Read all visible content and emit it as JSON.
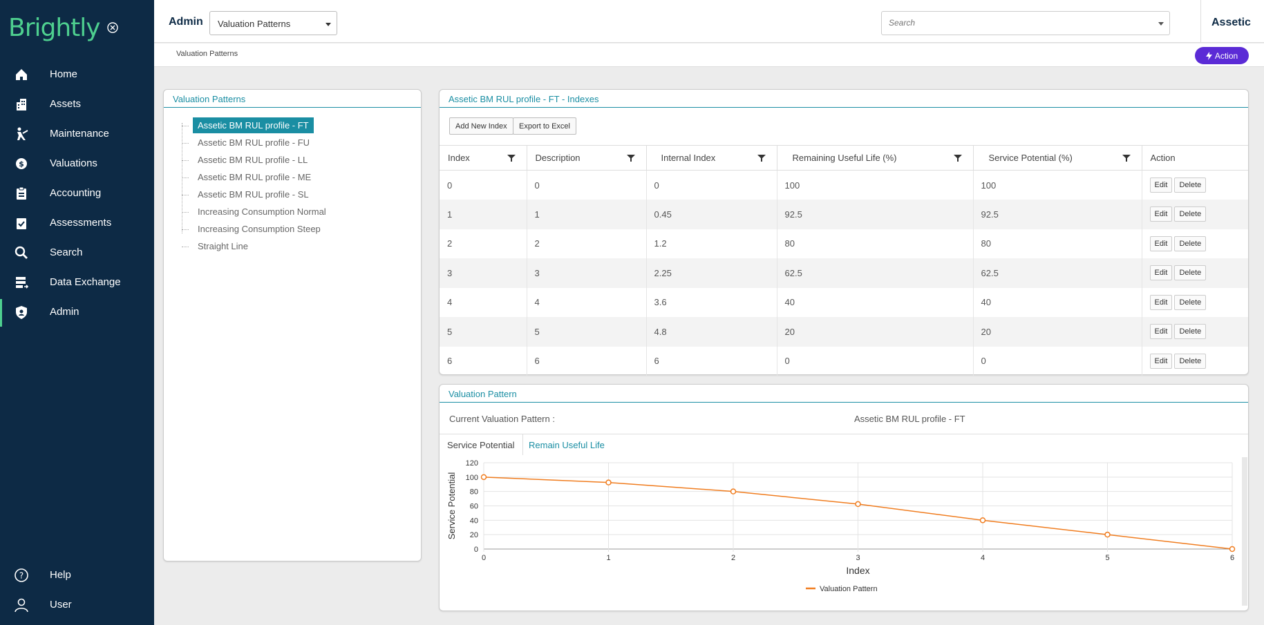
{
  "brand": {
    "logo_text": "Brightly",
    "accent": "#4ecf8f",
    "sidebar_bg": "#0d2a45",
    "teal": "#1a8ea3",
    "action_purple": "#5b2bd6"
  },
  "sidebar": {
    "items": [
      {
        "label": "Home",
        "icon": "home-icon"
      },
      {
        "label": "Assets",
        "icon": "building-icon"
      },
      {
        "label": "Maintenance",
        "icon": "worker-icon"
      },
      {
        "label": "Valuations",
        "icon": "coins-icon"
      },
      {
        "label": "Accounting",
        "icon": "ledger-icon"
      },
      {
        "label": "Assessments",
        "icon": "clipboard-check-icon"
      },
      {
        "label": "Search",
        "icon": "search-icon"
      },
      {
        "label": "Data Exchange",
        "icon": "data-exchange-icon"
      },
      {
        "label": "Admin",
        "icon": "shield-icon",
        "active": true
      }
    ],
    "bottom": [
      {
        "label": "Help",
        "icon": "help-icon"
      },
      {
        "label": "User",
        "icon": "user-icon"
      }
    ]
  },
  "topbar": {
    "section": "Admin",
    "module_select": "Valuation Patterns",
    "search_placeholder": "Search",
    "tenant": "Assetic"
  },
  "breadcrumb": "Valuation Patterns",
  "action_button": "Action",
  "patterns_panel": {
    "title": "Valuation Patterns",
    "items": [
      "Assetic BM RUL profile - FT",
      "Assetic BM RUL profile - FU",
      "Assetic BM RUL profile - LL",
      "Assetic BM RUL profile - ME",
      "Assetic BM RUL profile - SL",
      "Increasing Consumption Normal",
      "Increasing Consumption Steep",
      "Straight Line"
    ],
    "selected_index": 0
  },
  "indexes_panel": {
    "title": "Assetic BM RUL profile - FT - Indexes",
    "add_button": "Add New Index",
    "export_button": "Export to Excel",
    "columns": [
      "Index",
      "Description",
      "Internal Index",
      "Remaining Useful Life (%)",
      "Service Potential (%)",
      "Action"
    ],
    "rows": [
      [
        "0",
        "0",
        "0",
        "100",
        "100"
      ],
      [
        "1",
        "1",
        "0.45",
        "92.5",
        "92.5"
      ],
      [
        "2",
        "2",
        "1.2",
        "80",
        "80"
      ],
      [
        "3",
        "3",
        "2.25",
        "62.5",
        "62.5"
      ],
      [
        "4",
        "4",
        "3.6",
        "40",
        "40"
      ],
      [
        "5",
        "5",
        "4.8",
        "20",
        "20"
      ],
      [
        "6",
        "6",
        "6",
        "0",
        "0"
      ]
    ],
    "edit_label": "Edit",
    "delete_label": "Delete"
  },
  "chart_panel": {
    "title": "Valuation Pattern",
    "current_label": "Current Valuation Pattern :",
    "current_value": "Assetic BM RUL profile - FT",
    "tabs": [
      "Service Potential",
      "Remain Useful Life"
    ],
    "active_tab": 0
  },
  "chart_data": {
    "type": "line",
    "xlabel": "Index",
    "ylabel": "Service Potential",
    "x": [
      0,
      1,
      2,
      3,
      4,
      5,
      6
    ],
    "series": [
      {
        "name": "Valuation Pattern",
        "values": [
          100,
          92.5,
          80,
          62.5,
          40,
          20,
          0
        ],
        "color": "#f07c1e"
      }
    ],
    "xlim": [
      0,
      6
    ],
    "ylim": [
      0,
      120
    ],
    "yticks": [
      0,
      20,
      40,
      60,
      80,
      100,
      120
    ],
    "xticks": [
      0,
      1,
      2,
      3,
      4,
      5,
      6
    ],
    "grid": true,
    "legend": "bottom-center"
  }
}
